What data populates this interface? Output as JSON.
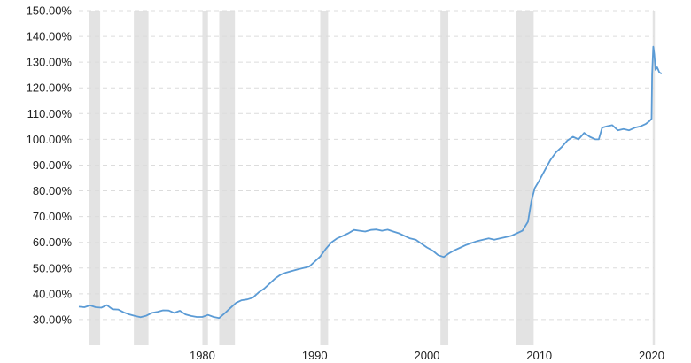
{
  "chart_data": {
    "type": "line",
    "title": "",
    "xlabel": "",
    "ylabel": "",
    "xlim": [
      1969,
      2020.2
    ],
    "ylim": [
      20,
      150
    ],
    "grid": true,
    "x_ticks": [
      1980,
      1990,
      2000,
      2010,
      2020
    ],
    "y_ticks": [
      30,
      40,
      50,
      60,
      70,
      80,
      90,
      100,
      110,
      120,
      130,
      140,
      150
    ],
    "y_tick_suffix": "%",
    "y_tick_decimals": 2,
    "colors": {
      "line": "#5b9bd5",
      "recession_band": "#e3e3e3",
      "grid": "#dcdcdc"
    },
    "recession_bands": [
      [
        1969.9,
        1970.9
      ],
      [
        1973.9,
        1975.2
      ],
      [
        1980.0,
        1980.5
      ],
      [
        1981.5,
        1982.9
      ],
      [
        1990.5,
        1991.2
      ],
      [
        2001.2,
        2001.9
      ],
      [
        2007.9,
        2009.5
      ],
      [
        2020.1,
        2020.3
      ]
    ],
    "series": [
      {
        "values": [
          [
            1969.0,
            35.0
          ],
          [
            1969.5,
            34.8
          ],
          [
            1970.0,
            35.5
          ],
          [
            1970.5,
            34.8
          ],
          [
            1971.0,
            34.6
          ],
          [
            1971.5,
            35.6
          ],
          [
            1972.0,
            34.0
          ],
          [
            1972.5,
            33.9
          ],
          [
            1973.0,
            32.8
          ],
          [
            1973.5,
            32.0
          ],
          [
            1974.0,
            31.4
          ],
          [
            1974.5,
            30.9
          ],
          [
            1975.0,
            31.5
          ],
          [
            1975.5,
            32.6
          ],
          [
            1976.0,
            33.0
          ],
          [
            1976.5,
            33.6
          ],
          [
            1977.0,
            33.5
          ],
          [
            1977.5,
            32.6
          ],
          [
            1978.0,
            33.4
          ],
          [
            1978.5,
            32.0
          ],
          [
            1979.0,
            31.4
          ],
          [
            1979.5,
            31.0
          ],
          [
            1980.0,
            31.0
          ],
          [
            1980.5,
            31.8
          ],
          [
            1981.0,
            31.0
          ],
          [
            1981.5,
            30.6
          ],
          [
            1982.0,
            32.5
          ],
          [
            1982.5,
            34.5
          ],
          [
            1983.0,
            36.5
          ],
          [
            1983.5,
            37.5
          ],
          [
            1984.0,
            37.8
          ],
          [
            1984.5,
            38.5
          ],
          [
            1985.0,
            40.5
          ],
          [
            1985.5,
            42.0
          ],
          [
            1986.0,
            44.0
          ],
          [
            1986.5,
            46.0
          ],
          [
            1987.0,
            47.5
          ],
          [
            1987.5,
            48.3
          ],
          [
            1988.0,
            48.9
          ],
          [
            1988.5,
            49.5
          ],
          [
            1989.0,
            50.0
          ],
          [
            1989.5,
            50.5
          ],
          [
            1990.0,
            52.5
          ],
          [
            1990.5,
            54.5
          ],
          [
            1991.0,
            57.5
          ],
          [
            1991.5,
            60.0
          ],
          [
            1992.0,
            61.5
          ],
          [
            1992.5,
            62.5
          ],
          [
            1993.0,
            63.5
          ],
          [
            1993.5,
            64.8
          ],
          [
            1994.0,
            64.5
          ],
          [
            1994.5,
            64.2
          ],
          [
            1995.0,
            64.8
          ],
          [
            1995.5,
            65.0
          ],
          [
            1996.0,
            64.5
          ],
          [
            1996.5,
            64.9
          ],
          [
            1997.0,
            64.2
          ],
          [
            1997.5,
            63.5
          ],
          [
            1998.0,
            62.5
          ],
          [
            1998.5,
            61.5
          ],
          [
            1999.0,
            61.0
          ],
          [
            1999.5,
            59.5
          ],
          [
            2000.0,
            58.0
          ],
          [
            2000.5,
            56.8
          ],
          [
            2001.0,
            55.0
          ],
          [
            2001.5,
            54.3
          ],
          [
            2002.0,
            55.8
          ],
          [
            2002.5,
            57.0
          ],
          [
            2003.0,
            58.0
          ],
          [
            2003.5,
            59.0
          ],
          [
            2004.0,
            59.8
          ],
          [
            2004.5,
            60.5
          ],
          [
            2005.0,
            61.0
          ],
          [
            2005.5,
            61.5
          ],
          [
            2006.0,
            61.0
          ],
          [
            2006.5,
            61.5
          ],
          [
            2007.0,
            62.0
          ],
          [
            2007.5,
            62.5
          ],
          [
            2008.0,
            63.5
          ],
          [
            2008.5,
            64.5
          ],
          [
            2009.0,
            68.0
          ],
          [
            2009.3,
            76.0
          ],
          [
            2009.6,
            81.0
          ],
          [
            2010.0,
            84.0
          ],
          [
            2010.5,
            88.0
          ],
          [
            2011.0,
            92.0
          ],
          [
            2011.5,
            95.0
          ],
          [
            2012.0,
            97.0
          ],
          [
            2012.5,
            99.5
          ],
          [
            2013.0,
            101.0
          ],
          [
            2013.5,
            100.0
          ],
          [
            2014.0,
            102.5
          ],
          [
            2014.5,
            101.0
          ],
          [
            2015.0,
            100.0
          ],
          [
            2015.3,
            100.0
          ],
          [
            2015.6,
            104.5
          ],
          [
            2016.0,
            105.0
          ],
          [
            2016.5,
            105.5
          ],
          [
            2017.0,
            103.5
          ],
          [
            2017.5,
            104.0
          ],
          [
            2018.0,
            103.5
          ],
          [
            2018.5,
            104.5
          ],
          [
            2019.0,
            105.0
          ],
          [
            2019.5,
            106.0
          ],
          [
            2019.8,
            107.0
          ],
          [
            2020.0,
            108.0
          ],
          [
            2020.05,
            125.0
          ],
          [
            2020.15,
            136.0
          ],
          [
            2020.25,
            133.0
          ],
          [
            2020.35,
            127.0
          ],
          [
            2020.5,
            128.0
          ],
          [
            2020.7,
            126.0
          ],
          [
            2020.9,
            125.5
          ]
        ]
      }
    ]
  }
}
